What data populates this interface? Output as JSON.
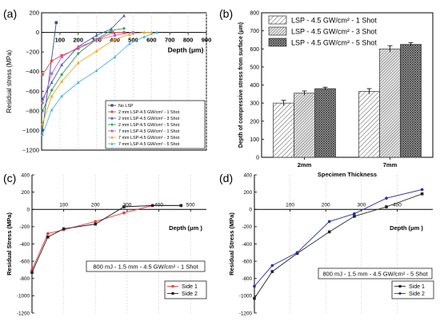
{
  "panels": {
    "a": {
      "letter": "(a)"
    },
    "b": {
      "letter": "(b)"
    },
    "c": {
      "letter": "(c)"
    },
    "d": {
      "letter": "(d)"
    }
  },
  "chart_data": [
    {
      "id": "a",
      "type": "line",
      "xlabel": "Depth  (μm)",
      "ylabel": "Residual stress (MPa)",
      "xlim": [
        0,
        900
      ],
      "ylim": [
        -1200,
        200
      ],
      "xticks": [
        100,
        200,
        300,
        400,
        500,
        600,
        700,
        800,
        900
      ],
      "yticks": [
        200,
        0,
        -200,
        -400,
        -600,
        -800,
        -1000,
        -1200
      ],
      "xtick_labels": [
        "100",
        "200",
        "300",
        "400",
        "500",
        "600",
        "700",
        "800",
        "900"
      ],
      "ytick_labels": [
        "200",
        "0",
        "−200",
        "−400",
        "−600",
        "−800",
        "−1000",
        "−1200"
      ],
      "legend_position": "bottom-right",
      "series": [
        {
          "name": "No LSP",
          "color": "#3b4a8c",
          "marker": "square",
          "x": [
            5,
            80
          ],
          "y": [
            -1000,
            100
          ]
        },
        {
          "name": "2 mm LSP-4.5 GW/cm² - 1 Shot",
          "color": "#e8484a",
          "marker": "circle",
          "x": [
            5,
            55,
            110,
            200,
            300,
            390,
            450
          ],
          "y": [
            -430,
            -290,
            -235,
            -165,
            -75,
            0,
            0
          ]
        },
        {
          "name": "2 mm LSP-4.5 GW/cm² - 3 Shot",
          "color": "#3f5bc4",
          "marker": "triangle",
          "x": [
            5,
            55,
            110,
            200,
            300,
            380,
            450
          ],
          "y": [
            -680,
            -510,
            -330,
            -145,
            -30,
            35,
            170
          ]
        },
        {
          "name": "2 mm LSP-4.5 GW/cm² - 5 Shot",
          "color": "#2aa05a",
          "marker": "diamond",
          "x": [
            5,
            55,
            110,
            200,
            300,
            380,
            450
          ],
          "y": [
            -800,
            -590,
            -430,
            -215,
            -70,
            20,
            40
          ]
        },
        {
          "name": "7 mm LSP-4.5 GW/cm² - 1 Shot",
          "color": "#c760c8",
          "marker": "circle",
          "x": [
            5,
            55,
            110,
            200,
            300,
            400,
            500
          ],
          "y": [
            -720,
            -420,
            -250,
            -150,
            -80,
            -30,
            0
          ]
        },
        {
          "name": "7 mm LSP-4.5 GW/cm² - 3 Shot",
          "color": "#f2a81d",
          "marker": "triangle",
          "x": [
            5,
            55,
            110,
            200,
            300,
            400,
            480,
            560,
            600
          ],
          "y": [
            -930,
            -650,
            -500,
            -310,
            -190,
            -70,
            -20,
            0,
            0
          ]
        },
        {
          "name": "7 mm LSP-4.5 GW/cm² - 5 Shot",
          "color": "#46b9de",
          "marker": "triangle",
          "x": [
            5,
            55,
            110,
            200,
            300,
            400,
            480,
            560,
            630
          ],
          "y": [
            -1040,
            -790,
            -650,
            -510,
            -390,
            -250,
            -115,
            -45,
            0
          ]
        }
      ]
    },
    {
      "id": "b",
      "type": "bar",
      "xlabel": "Specimen Thickness",
      "ylabel": "Depth of compressive stress from surface (μm)",
      "categories": [
        "2mm",
        "7mm"
      ],
      "ylim": [
        0,
        800
      ],
      "yticks": [
        0,
        100,
        200,
        300,
        400,
        500,
        600,
        700,
        800
      ],
      "ytick_labels": [
        "0",
        "100",
        "200",
        "300",
        "400",
        "500",
        "600",
        "700",
        "800"
      ],
      "legend_position": "top-left",
      "series": [
        {
          "name": "LSP - 4.5 GW/cm² - 1 Shot",
          "pattern": "sparse-hatch",
          "values": [
            300,
            365
          ],
          "errors": [
            15,
            15
          ]
        },
        {
          "name": "LSP - 4.5 GW/cm² - 3 Shot",
          "pattern": "dense-hatch",
          "values": [
            355,
            600
          ],
          "errors": [
            12,
            18
          ]
        },
        {
          "name": "LSP - 4.5 GW/cm² - 5 Shot",
          "pattern": "crosshatch",
          "values": [
            380,
            625
          ],
          "errors": [
            8,
            10
          ]
        }
      ]
    },
    {
      "id": "c",
      "type": "line",
      "xlabel": "Depth (μm )",
      "ylabel": "Residual Stress (MPa)",
      "annotation": "800 mJ - 1.5 mm - 4.5 GW/cm² - 1 Shot",
      "xlim": [
        0,
        550
      ],
      "ylim": [
        -1200,
        400
      ],
      "xticks": [
        100,
        200,
        300,
        400,
        500
      ],
      "yticks": [
        400,
        200,
        0,
        -200,
        -400,
        -600,
        -800,
        -1000,
        -1200
      ],
      "xtick_labels": [
        "100",
        "200",
        "300",
        "400",
        "500"
      ],
      "ytick_labels": [
        "400",
        "200",
        "0",
        "-200",
        "-400",
        "-600",
        "-800",
        "-1000",
        "-1200"
      ],
      "legend_position": "bottom-right",
      "series": [
        {
          "name": "Side 1",
          "color": "#e83a3a",
          "marker": "circle",
          "x": [
            0,
            50,
            100,
            200,
            290,
            380,
            470
          ],
          "y": [
            -700,
            -280,
            -235,
            -140,
            -40,
            45,
            45
          ]
        },
        {
          "name": "Side 2",
          "color": "#222222",
          "marker": "square",
          "x": [
            0,
            50,
            100,
            200,
            290,
            380,
            470
          ],
          "y": [
            -730,
            -320,
            -225,
            -170,
            30,
            45,
            45
          ]
        }
      ]
    },
    {
      "id": "d",
      "type": "line",
      "xlabel": "Depth (μm )",
      "ylabel": "Residual Stress (MPa)",
      "annotation": "800 mJ - 1.5 mm - 4.5 GW/cm² - 5 Shot",
      "xlim": [
        0,
        500
      ],
      "ylim": [
        -1200,
        400
      ],
      "xticks": [
        100,
        200,
        300,
        400
      ],
      "yticks": [
        400,
        200,
        0,
        -200,
        -400,
        -600,
        -800,
        -1000,
        -1200
      ],
      "xtick_labels": [
        "100",
        "200",
        "300",
        "400"
      ],
      "ytick_labels": [
        "400",
        "200",
        "0",
        "-200",
        "-400",
        "-600",
        "-800",
        "-1000",
        "-1200"
      ],
      "legend_position": "bottom-right",
      "series": [
        {
          "name": "Side 1",
          "color": "#222222",
          "marker": "square",
          "x": [
            0,
            50,
            120,
            210,
            280,
            370,
            470
          ],
          "y": [
            -1030,
            -720,
            -510,
            -260,
            -80,
            30,
            180
          ]
        },
        {
          "name": "Side 2",
          "color": "#2230a8",
          "marker": "circle",
          "x": [
            0,
            50,
            120,
            210,
            280,
            370,
            470
          ],
          "y": [
            -890,
            -650,
            -500,
            -140,
            -50,
            130,
            230
          ]
        }
      ]
    }
  ]
}
